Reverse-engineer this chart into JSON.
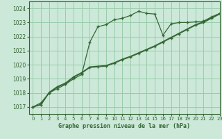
{
  "background_color": "#cce8d8",
  "grid_color": "#99ccaa",
  "line_color": "#336633",
  "title": "Graphe pression niveau de la mer (hPa)",
  "xlim": [
    -0.5,
    23
  ],
  "ylim": [
    1016.5,
    1024.5
  ],
  "yticks": [
    1017,
    1018,
    1019,
    1020,
    1021,
    1022,
    1023,
    1024
  ],
  "xticks": [
    0,
    1,
    2,
    3,
    4,
    5,
    6,
    7,
    8,
    9,
    10,
    11,
    12,
    13,
    14,
    15,
    16,
    17,
    18,
    19,
    20,
    21,
    22,
    23
  ],
  "series1_x": [
    0,
    1,
    2,
    3,
    4,
    5,
    6,
    7,
    8,
    9,
    10,
    11,
    12,
    13,
    14,
    15,
    16,
    17,
    18,
    19,
    20,
    21,
    22,
    23
  ],
  "series1_y": [
    1017.0,
    1017.3,
    1018.0,
    1018.3,
    1018.6,
    1019.0,
    1019.3,
    1021.6,
    1022.7,
    1022.85,
    1023.2,
    1023.3,
    1023.5,
    1023.8,
    1023.65,
    1023.6,
    1022.1,
    1022.9,
    1023.0,
    1023.0,
    1023.05,
    1023.1,
    1023.4,
    1023.65
  ],
  "series2_x": [
    0,
    1,
    2,
    3,
    4,
    5,
    6,
    7,
    8,
    9,
    10,
    11,
    12,
    13,
    14,
    15,
    16,
    17,
    18,
    19,
    20,
    21,
    22,
    23
  ],
  "series2_y": [
    1017.0,
    1017.15,
    1018.0,
    1018.4,
    1018.65,
    1019.1,
    1019.4,
    1019.8,
    1019.85,
    1019.9,
    1020.1,
    1020.35,
    1020.55,
    1020.8,
    1021.05,
    1021.3,
    1021.6,
    1021.9,
    1022.2,
    1022.5,
    1022.8,
    1023.0,
    1023.3,
    1023.6
  ],
  "series3_x": [
    0,
    1,
    2,
    3,
    4,
    5,
    6,
    7,
    8,
    9,
    10,
    11,
    12,
    13,
    14,
    15,
    16,
    17,
    18,
    19,
    20,
    21,
    22,
    23
  ],
  "series3_y": [
    1017.0,
    1017.2,
    1018.05,
    1018.45,
    1018.7,
    1019.15,
    1019.45,
    1019.85,
    1019.9,
    1019.95,
    1020.15,
    1020.4,
    1020.6,
    1020.85,
    1021.1,
    1021.35,
    1021.65,
    1021.95,
    1022.25,
    1022.55,
    1022.85,
    1023.05,
    1023.35,
    1023.65
  ]
}
